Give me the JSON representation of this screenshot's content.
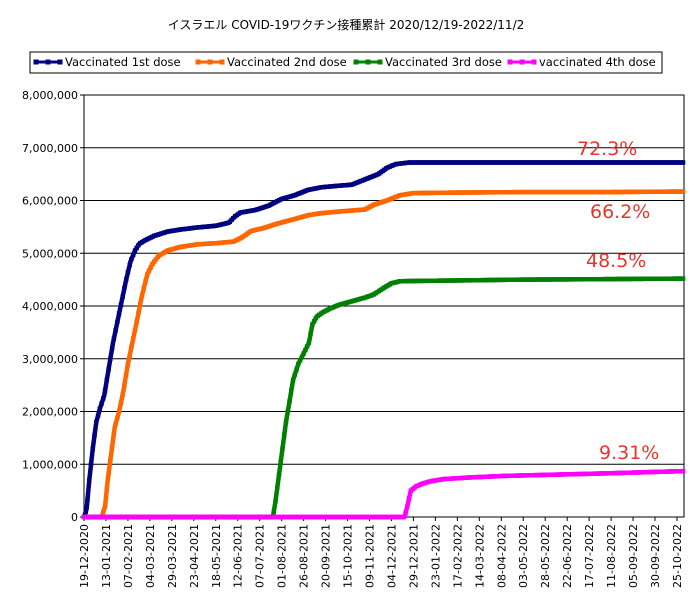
{
  "chart_data": {
    "type": "line",
    "title": "イスラエル COVID-19ワクチン接種累計 2020/12/19-2022/11/2",
    "xlabel": "",
    "ylabel": "",
    "ylim": [
      0,
      8000000
    ],
    "yticks": [
      "0",
      "1,000,000",
      "2,000,000",
      "3,000,000",
      "4,000,000",
      "5,000,000",
      "6,000,000",
      "7,000,000",
      "8,000,000"
    ],
    "xticks": [
      "19-12-2020",
      "13-01-2021",
      "07-02-2021",
      "04-03-2021",
      "29-03-2021",
      "23-04-2021",
      "18-05-2021",
      "12-06-2021",
      "07-07-2021",
      "01-08-2021",
      "26-08-2021",
      "20-09-2021",
      "15-10-2021",
      "09-11-2021",
      "04-12-2021",
      "29-12-2021",
      "23-01-2022",
      "17-02-2022",
      "14-03-2022",
      "08-04-2022",
      "03-05-2022",
      "28-05-2022",
      "22-06-2022",
      "17-07-2022",
      "11-08-2022",
      "05-09-2022",
      "30-09-2022",
      "25-10-2022"
    ],
    "x_unit": "days since 19-12-2020",
    "x_max": 683,
    "grid": true,
    "legend": "top",
    "series": [
      {
        "name": "Vaccinated 1st dose",
        "color": "#000080",
        "label": "72.3%",
        "points": [
          [
            0,
            0
          ],
          [
            3,
            150000
          ],
          [
            6,
            700000
          ],
          [
            10,
            1300000
          ],
          [
            14,
            1800000
          ],
          [
            18,
            2050000
          ],
          [
            23,
            2300000
          ],
          [
            28,
            2800000
          ],
          [
            33,
            3300000
          ],
          [
            38,
            3700000
          ],
          [
            43,
            4100000
          ],
          [
            48,
            4500000
          ],
          [
            53,
            4850000
          ],
          [
            58,
            5050000
          ],
          [
            63,
            5180000
          ],
          [
            70,
            5250000
          ],
          [
            80,
            5330000
          ],
          [
            95,
            5410000
          ],
          [
            110,
            5450000
          ],
          [
            130,
            5490000
          ],
          [
            150,
            5520000
          ],
          [
            165,
            5580000
          ],
          [
            172,
            5700000
          ],
          [
            178,
            5770000
          ],
          [
            195,
            5820000
          ],
          [
            210,
            5900000
          ],
          [
            225,
            6030000
          ],
          [
            240,
            6100000
          ],
          [
            255,
            6200000
          ],
          [
            270,
            6250000
          ],
          [
            290,
            6280000
          ],
          [
            305,
            6300000
          ],
          [
            320,
            6400000
          ],
          [
            335,
            6500000
          ],
          [
            345,
            6620000
          ],
          [
            355,
            6690000
          ],
          [
            370,
            6720000
          ],
          [
            450,
            6720000
          ],
          [
            550,
            6720000
          ],
          [
            683,
            6720000
          ]
        ]
      },
      {
        "name": "Vaccinated 2nd dose",
        "color": "#ff6600",
        "label": "66.2%",
        "points": [
          [
            0,
            0
          ],
          [
            20,
            0
          ],
          [
            24,
            200000
          ],
          [
            27,
            700000
          ],
          [
            31,
            1200000
          ],
          [
            35,
            1700000
          ],
          [
            40,
            2000000
          ],
          [
            45,
            2400000
          ],
          [
            50,
            2900000
          ],
          [
            55,
            3300000
          ],
          [
            60,
            3700000
          ],
          [
            66,
            4200000
          ],
          [
            72,
            4600000
          ],
          [
            78,
            4800000
          ],
          [
            85,
            4950000
          ],
          [
            95,
            5050000
          ],
          [
            110,
            5120000
          ],
          [
            130,
            5170000
          ],
          [
            150,
            5190000
          ],
          [
            170,
            5220000
          ],
          [
            180,
            5300000
          ],
          [
            190,
            5420000
          ],
          [
            205,
            5480000
          ],
          [
            220,
            5560000
          ],
          [
            240,
            5650000
          ],
          [
            255,
            5720000
          ],
          [
            270,
            5760000
          ],
          [
            290,
            5790000
          ],
          [
            305,
            5810000
          ],
          [
            320,
            5830000
          ],
          [
            330,
            5920000
          ],
          [
            345,
            6000000
          ],
          [
            360,
            6100000
          ],
          [
            375,
            6140000
          ],
          [
            420,
            6150000
          ],
          [
            500,
            6160000
          ],
          [
            600,
            6160000
          ],
          [
            683,
            6170000
          ]
        ]
      },
      {
        "name": "Vaccinated 3rd dose",
        "color": "#008000",
        "label": "48.5%",
        "points": [
          [
            0,
            0
          ],
          [
            200,
            0
          ],
          [
            215,
            0
          ],
          [
            218,
            300000
          ],
          [
            222,
            800000
          ],
          [
            226,
            1300000
          ],
          [
            230,
            1800000
          ],
          [
            234,
            2200000
          ],
          [
            238,
            2600000
          ],
          [
            244,
            2900000
          ],
          [
            250,
            3100000
          ],
          [
            256,
            3300000
          ],
          [
            260,
            3650000
          ],
          [
            265,
            3800000
          ],
          [
            272,
            3880000
          ],
          [
            280,
            3950000
          ],
          [
            290,
            4020000
          ],
          [
            305,
            4090000
          ],
          [
            320,
            4160000
          ],
          [
            330,
            4220000
          ],
          [
            340,
            4330000
          ],
          [
            350,
            4430000
          ],
          [
            360,
            4470000
          ],
          [
            400,
            4480000
          ],
          [
            450,
            4490000
          ],
          [
            500,
            4500000
          ],
          [
            600,
            4510000
          ],
          [
            683,
            4520000
          ]
        ]
      },
      {
        "name": "vaccinated 4th dose",
        "color": "#ff00ff",
        "label": "9.31%",
        "points": [
          [
            0,
            0
          ],
          [
            300,
            0
          ],
          [
            365,
            0
          ],
          [
            368,
            200000
          ],
          [
            372,
            500000
          ],
          [
            378,
            580000
          ],
          [
            385,
            630000
          ],
          [
            395,
            680000
          ],
          [
            410,
            720000
          ],
          [
            440,
            750000
          ],
          [
            480,
            780000
          ],
          [
            530,
            800000
          ],
          [
            600,
            830000
          ],
          [
            683,
            870000
          ]
        ]
      }
    ]
  }
}
